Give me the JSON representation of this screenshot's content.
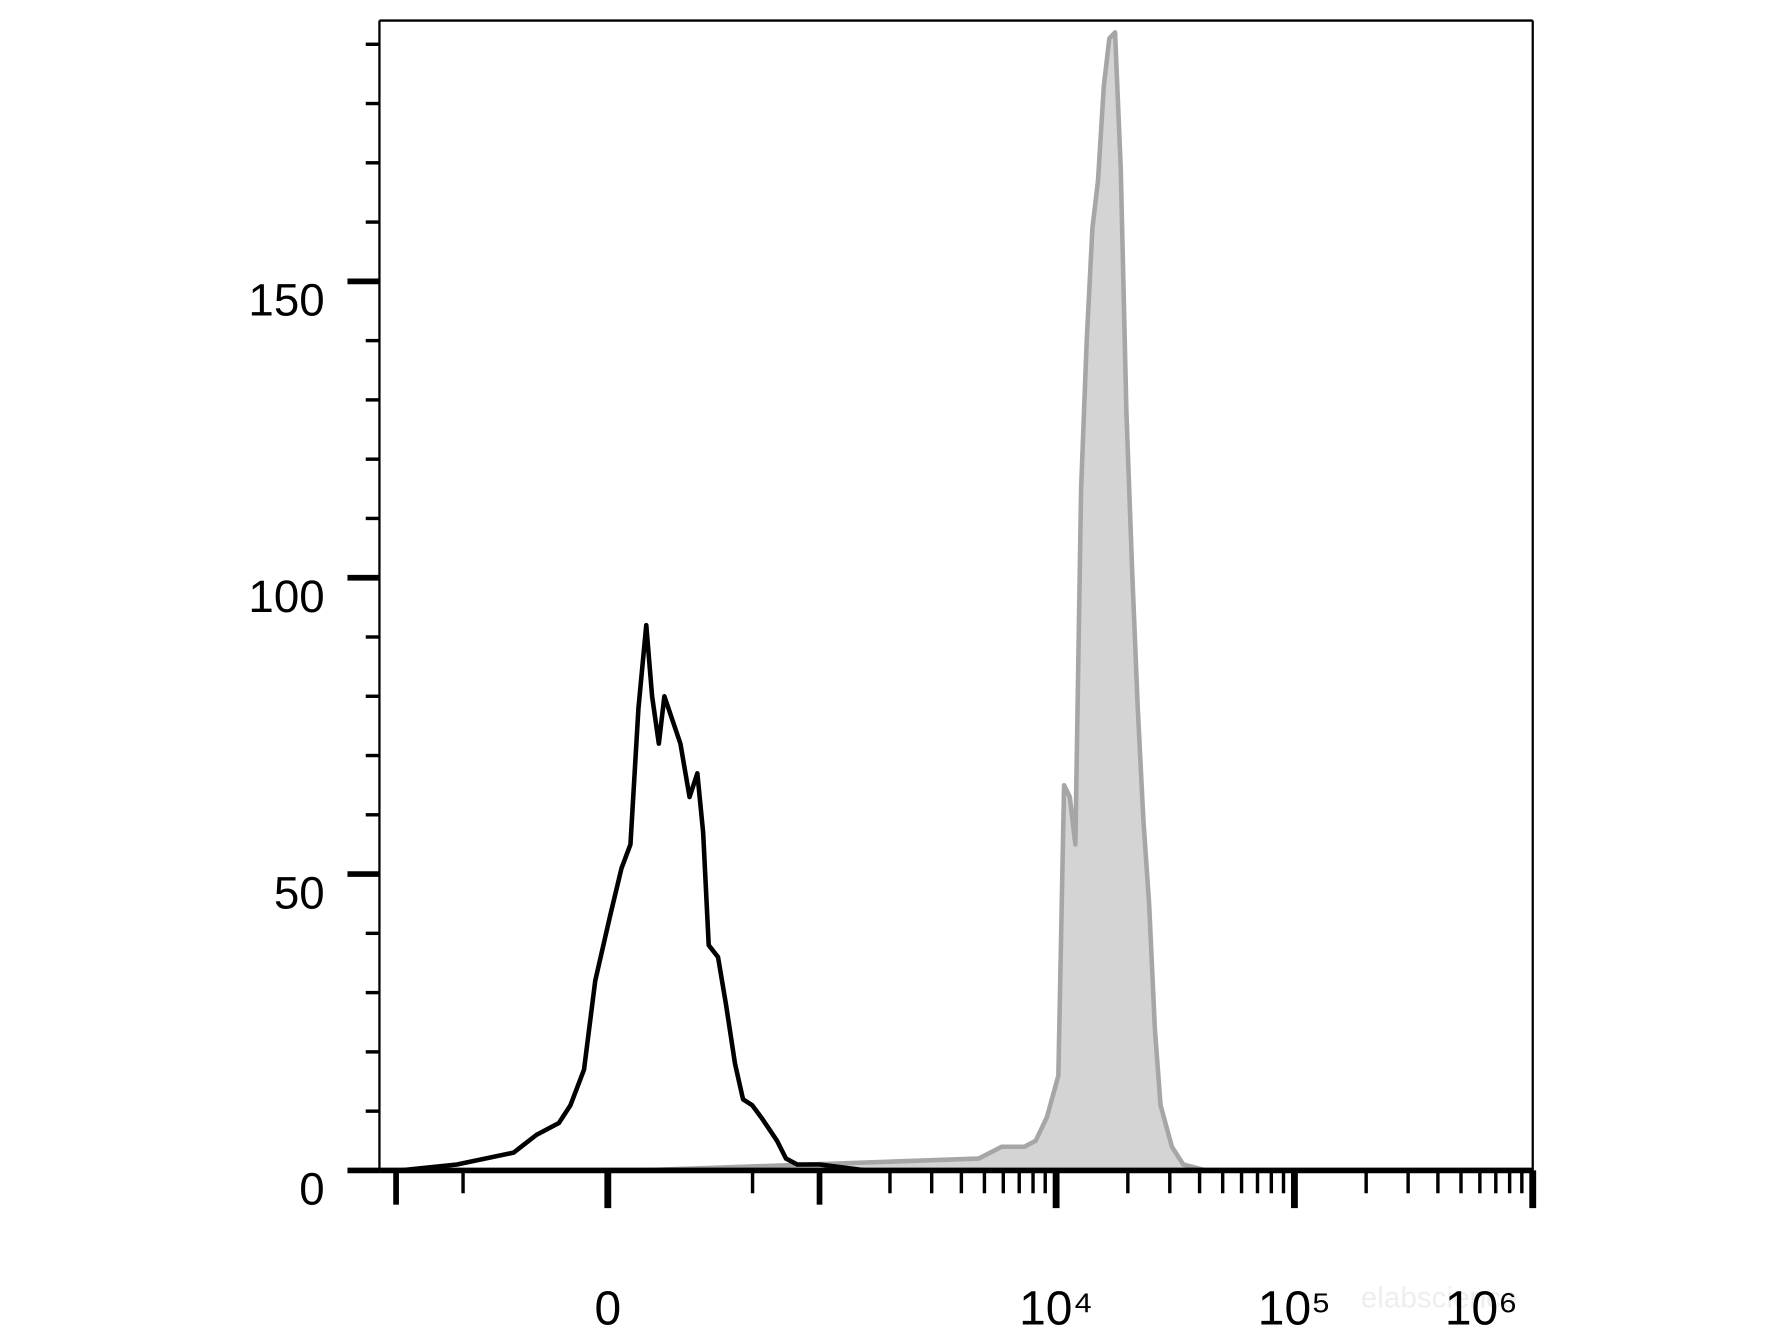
{
  "chart_data": {
    "type": "histogram-overlay",
    "xscale": "arcsinh",
    "xscale_cofactor": 263,
    "xlim": [
      -1180,
      1000000
    ],
    "xticks": [
      0,
      {
        "value": 10000,
        "label": "10⁴"
      },
      {
        "value": 100000,
        "label": "10⁵"
      },
      {
        "value": 1000000,
        "label": "10⁶"
      }
    ],
    "xticks_minor": [
      -1000,
      -500,
      500,
      1000,
      2000,
      3000,
      4000,
      5000,
      6000,
      7000,
      8000,
      9000,
      20000,
      30000,
      40000,
      50000,
      60000,
      70000,
      80000,
      90000,
      200000,
      300000,
      400000,
      500000,
      600000,
      700000,
      800000,
      900000
    ],
    "ylim": [
      0,
      194
    ],
    "yticks": [
      0,
      50,
      100,
      150
    ],
    "yticks_minor": [
      10,
      20,
      30,
      40,
      60,
      70,
      80,
      90,
      110,
      120,
      130,
      140,
      160,
      170,
      180,
      190
    ],
    "watermark": "elabscience",
    "series": [
      {
        "color": "#a6a6a6",
        "fill": "#d4d4d4",
        "x": [
          79,
          4734,
          5907,
          7353,
          8206,
          9152,
          10218,
          10799,
          11414,
          12045,
          12729,
          13439,
          14202,
          14991,
          15859,
          16727,
          17674,
          18673,
          19725,
          20856,
          22013,
          23249,
          24564,
          25958,
          27431,
          30613,
          34164,
          42553
        ],
        "values": [
          0,
          2,
          4,
          4,
          5,
          9,
          16,
          65,
          63,
          55,
          115,
          140,
          159,
          167,
          183,
          191,
          192,
          169,
          128,
          101,
          78,
          59,
          45,
          24,
          11,
          4,
          1,
          0
        ]
      },
      {
        "color": "#000000",
        "x": [
          -960,
          -534,
          -274,
          -196,
          -129,
          -97,
          -61,
          -32,
          6,
          35,
          58,
          79,
          100,
          116,
          135,
          151,
          175,
          200,
          230,
          257,
          278,
          299,
          336,
          370,
          411,
          450,
          498,
          548,
          597,
          649,
          712,
          799,
          1004,
          1573,
          2451
        ],
        "values": [
          0,
          1,
          3,
          6,
          8,
          11,
          17,
          32,
          43,
          51,
          55,
          78,
          92,
          80,
          72,
          80,
          76,
          72,
          63,
          67,
          57,
          38,
          36,
          28,
          18,
          12,
          11,
          9,
          7,
          5,
          2,
          1,
          1,
          0,
          0
        ]
      }
    ]
  }
}
